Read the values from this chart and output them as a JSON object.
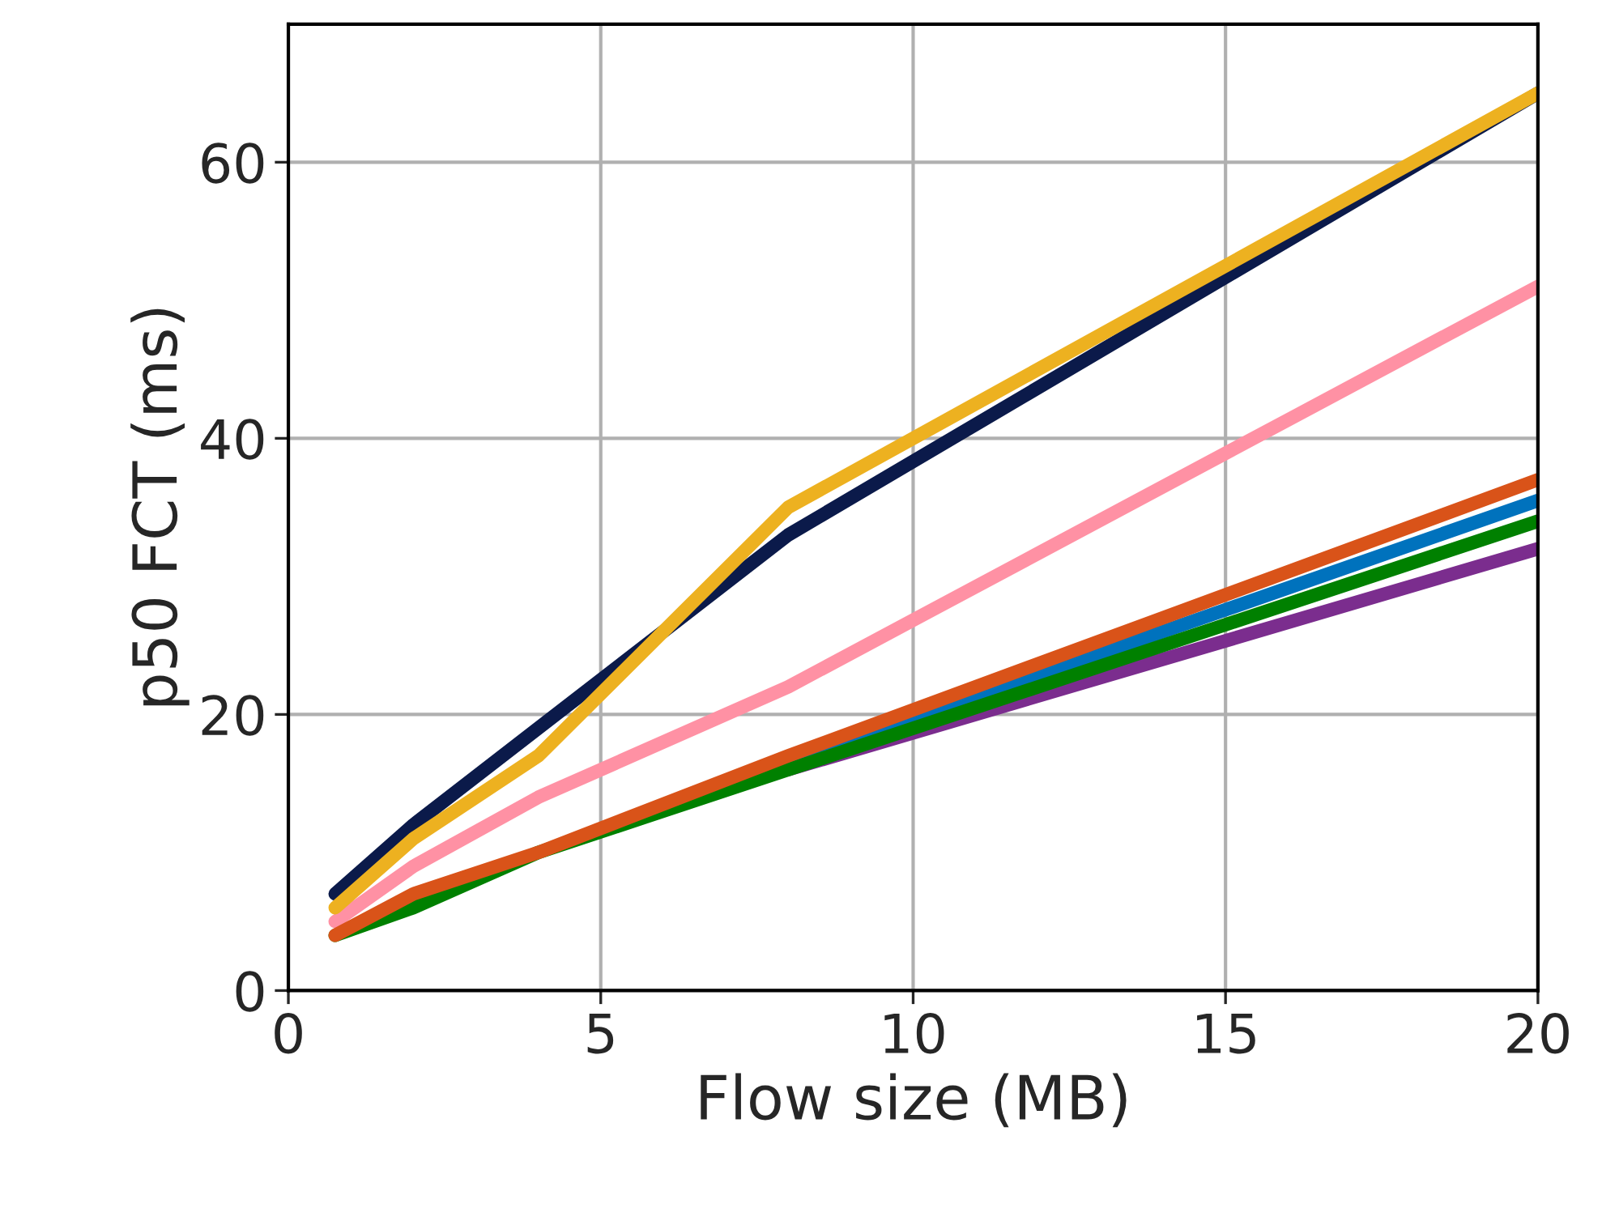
{
  "chart_data": {
    "type": "line",
    "xlabel": "Flow size (MB)",
    "ylabel": "p50 FCT (ms)",
    "x": [
      0.75,
      2,
      4,
      8,
      20
    ],
    "series": [
      {
        "color": "#0b1a4a",
        "values": [
          7,
          12,
          19,
          33,
          65
        ]
      },
      {
        "color": "#7b2d8e",
        "values": [
          null,
          null,
          null,
          16,
          32
        ]
      },
      {
        "color": "#0072bd",
        "values": [
          null,
          null,
          null,
          16.5,
          35.5
        ]
      },
      {
        "color": "#008000",
        "values": [
          4,
          6,
          10,
          16,
          34
        ]
      },
      {
        "color": "#ff91a4",
        "values": [
          5,
          9,
          14,
          22,
          51
        ]
      },
      {
        "color": "#d95319",
        "values": [
          4,
          7,
          10,
          17,
          37
        ]
      },
      {
        "color": "#edb120",
        "values": [
          6,
          11,
          17,
          35,
          65
        ]
      }
    ],
    "xlim": [
      0,
      20
    ],
    "xticks": [
      0,
      5,
      10,
      15,
      20
    ],
    "ylim": [
      0,
      70
    ],
    "yticks": [
      0,
      20,
      40,
      60
    ],
    "grid": true,
    "marker": "none",
    "line_style": "solid"
  }
}
